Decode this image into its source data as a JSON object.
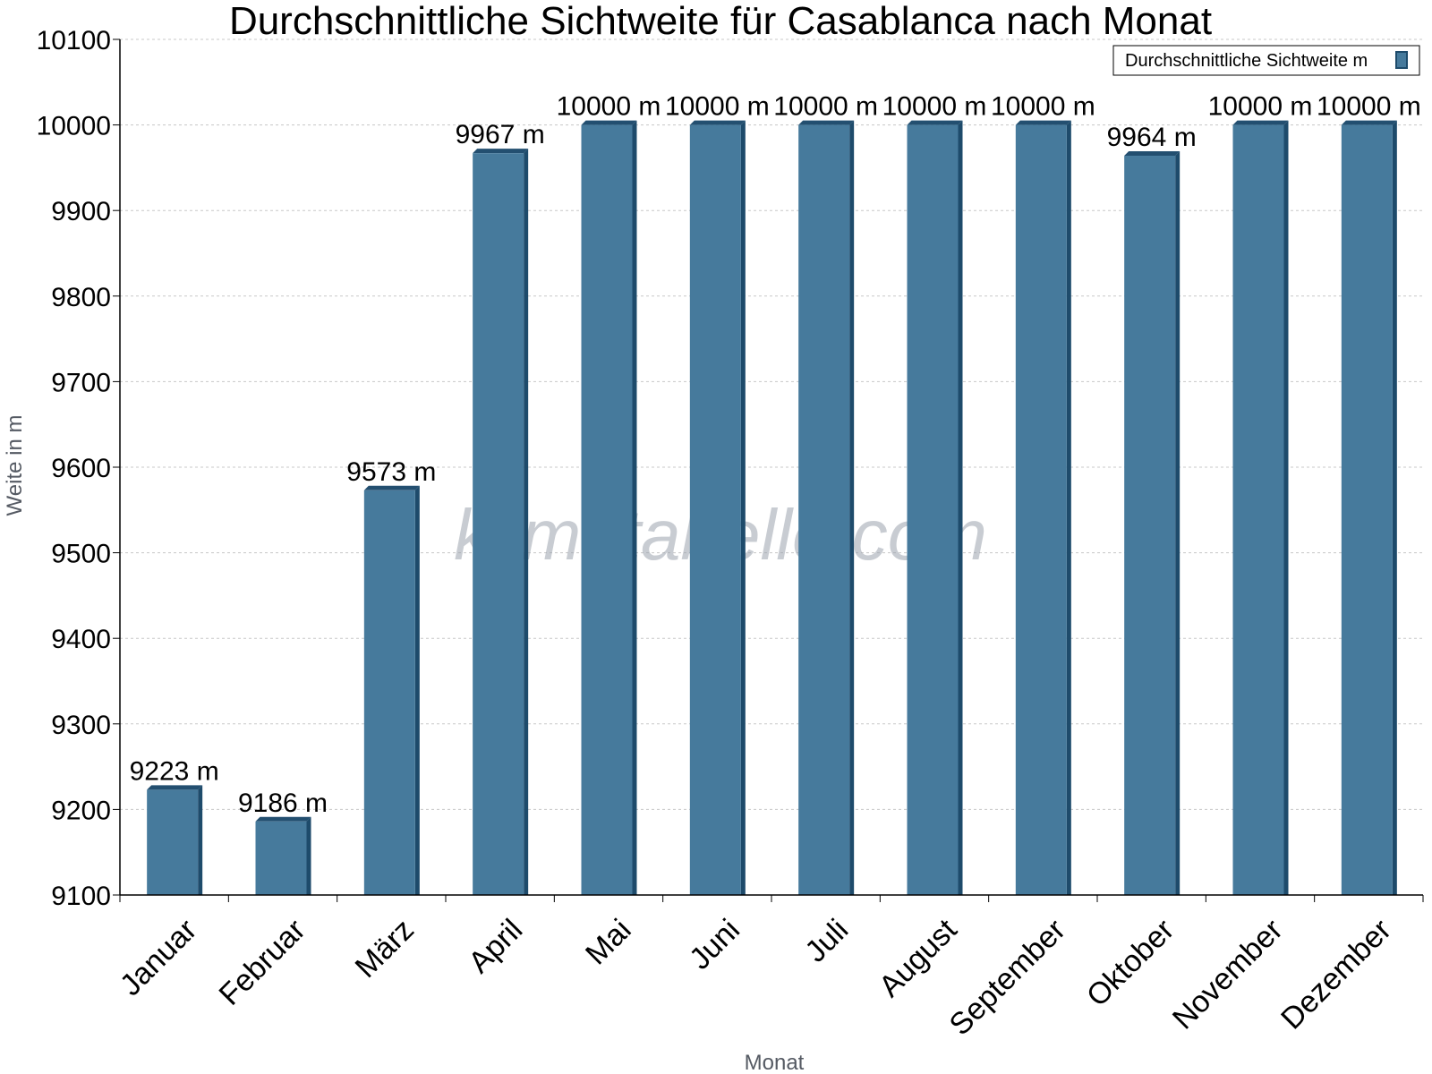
{
  "colors": {
    "bar_face": "#467a9c",
    "bar_side": "#1e4b6b",
    "bar_top": "#234f70",
    "grid": "#c8c8c8",
    "axis": "#000000"
  },
  "watermark": "klimatabelle.com",
  "chart_data": {
    "type": "bar",
    "title": "Durchschnittliche Sichtweite für Casablanca nach Monat",
    "xlabel": "Monat",
    "ylabel": "Weite in m",
    "ylim": [
      9100,
      10100
    ],
    "yticks": [
      "9100",
      "9200",
      "9300",
      "9400",
      "9500",
      "9600",
      "9700",
      "9800",
      "9900",
      "10000",
      "10100"
    ],
    "grid": true,
    "legend_position": "top-right",
    "categories": [
      "Januar",
      "Februar",
      "März",
      "April",
      "Mai",
      "Juni",
      "Juli",
      "August",
      "September",
      "Oktober",
      "November",
      "Dezember"
    ],
    "series": [
      {
        "name": "Durchschnittliche Sichtweite m",
        "values": [
          9223,
          9186,
          9573,
          9967,
          10000,
          10000,
          10000,
          10000,
          10000,
          9964,
          10000,
          10000
        ],
        "data_labels": [
          "9223 m",
          "9186 m",
          "9573 m",
          "9967 m",
          "10000 m",
          "10000 m",
          "10000 m",
          "10000 m",
          "10000 m",
          "9964 m",
          "10000 m",
          "10000 m"
        ]
      }
    ]
  }
}
